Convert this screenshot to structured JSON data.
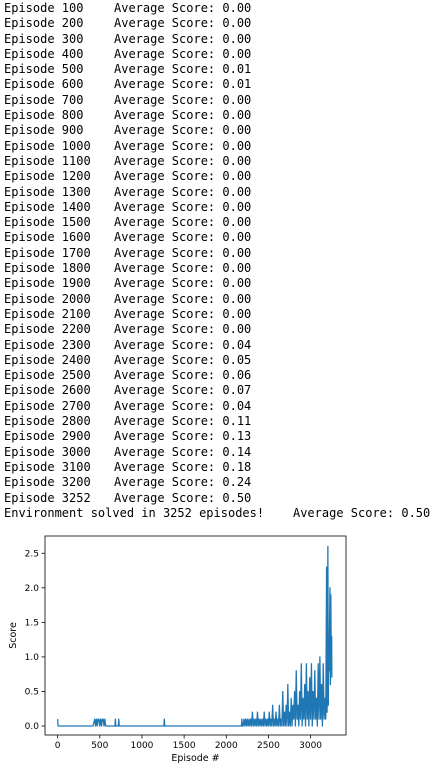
{
  "log": {
    "lines": [
      {
        "episode_label": "Episode 100",
        "score_label": "Average Score: 0.00"
      },
      {
        "episode_label": "Episode 200",
        "score_label": "Average Score: 0.00"
      },
      {
        "episode_label": "Episode 300",
        "score_label": "Average Score: 0.00"
      },
      {
        "episode_label": "Episode 400",
        "score_label": "Average Score: 0.00"
      },
      {
        "episode_label": "Episode 500",
        "score_label": "Average Score: 0.01"
      },
      {
        "episode_label": "Episode 600",
        "score_label": "Average Score: 0.01"
      },
      {
        "episode_label": "Episode 700",
        "score_label": "Average Score: 0.00"
      },
      {
        "episode_label": "Episode 800",
        "score_label": "Average Score: 0.00"
      },
      {
        "episode_label": "Episode 900",
        "score_label": "Average Score: 0.00"
      },
      {
        "episode_label": "Episode 1000",
        "score_label": "Average Score: 0.00"
      },
      {
        "episode_label": "Episode 1100",
        "score_label": "Average Score: 0.00"
      },
      {
        "episode_label": "Episode 1200",
        "score_label": "Average Score: 0.00"
      },
      {
        "episode_label": "Episode 1300",
        "score_label": "Average Score: 0.00"
      },
      {
        "episode_label": "Episode 1400",
        "score_label": "Average Score: 0.00"
      },
      {
        "episode_label": "Episode 1500",
        "score_label": "Average Score: 0.00"
      },
      {
        "episode_label": "Episode 1600",
        "score_label": "Average Score: 0.00"
      },
      {
        "episode_label": "Episode 1700",
        "score_label": "Average Score: 0.00"
      },
      {
        "episode_label": "Episode 1800",
        "score_label": "Average Score: 0.00"
      },
      {
        "episode_label": "Episode 1900",
        "score_label": "Average Score: 0.00"
      },
      {
        "episode_label": "Episode 2000",
        "score_label": "Average Score: 0.00"
      },
      {
        "episode_label": "Episode 2100",
        "score_label": "Average Score: 0.00"
      },
      {
        "episode_label": "Episode 2200",
        "score_label": "Average Score: 0.00"
      },
      {
        "episode_label": "Episode 2300",
        "score_label": "Average Score: 0.04"
      },
      {
        "episode_label": "Episode 2400",
        "score_label": "Average Score: 0.05"
      },
      {
        "episode_label": "Episode 2500",
        "score_label": "Average Score: 0.06"
      },
      {
        "episode_label": "Episode 2600",
        "score_label": "Average Score: 0.07"
      },
      {
        "episode_label": "Episode 2700",
        "score_label": "Average Score: 0.04"
      },
      {
        "episode_label": "Episode 2800",
        "score_label": "Average Score: 0.11"
      },
      {
        "episode_label": "Episode 2900",
        "score_label": "Average Score: 0.13"
      },
      {
        "episode_label": "Episode 3000",
        "score_label": "Average Score: 0.14"
      },
      {
        "episode_label": "Episode 3100",
        "score_label": "Average Score: 0.18"
      },
      {
        "episode_label": "Episode 3200",
        "score_label": "Average Score: 0.24"
      },
      {
        "episode_label": "Episode 3252",
        "score_label": "Average Score: 0.50"
      }
    ],
    "solved_line": "Environment solved in 3252 episodes!\tAverage Score: 0.50"
  },
  "chart_data": {
    "type": "line",
    "xlabel": "Episode #",
    "ylabel": "Score",
    "xlim": [
      -150,
      3420
    ],
    "ylim": [
      -0.13,
      2.75
    ],
    "xticks": [
      0,
      500,
      1000,
      1500,
      2000,
      2500,
      3000
    ],
    "yticks": [
      0.0,
      0.5,
      1.0,
      1.5,
      2.0,
      2.5
    ],
    "xtick_labels": [
      "0",
      "500",
      "1000",
      "1500",
      "2000",
      "2500",
      "3000"
    ],
    "ytick_labels": [
      "0.0",
      "0.5",
      "1.0",
      "1.5",
      "2.0",
      "2.5"
    ],
    "grid": false,
    "line_color": "#1f77b4",
    "series": [
      {
        "x": [
          0,
          5,
          12,
          20,
          40,
          80,
          150,
          250,
          350,
          420,
          440,
          450,
          460,
          470,
          480,
          490,
          500,
          510,
          520,
          530,
          540,
          550,
          560,
          570,
          580,
          600,
          650,
          680,
          685,
          690,
          700,
          720,
          725,
          730,
          740,
          800,
          900,
          1000,
          1100,
          1200,
          1260,
          1265,
          1270,
          1280,
          1400,
          1600,
          1800,
          2000,
          2150,
          2180,
          2185,
          2190,
          2200,
          2210,
          2220,
          2230,
          2240,
          2250,
          2260,
          2270,
          2280,
          2290,
          2300,
          2310,
          2320,
          2330,
          2340,
          2350,
          2360,
          2370,
          2380,
          2390,
          2400,
          2410,
          2420,
          2430,
          2440,
          2450,
          2460,
          2470,
          2480,
          2490,
          2500,
          2510,
          2520,
          2530,
          2540,
          2550,
          2560,
          2570,
          2580,
          2590,
          2600,
          2610,
          2620,
          2630,
          2640,
          2650,
          2660,
          2670,
          2680,
          2690,
          2700,
          2710,
          2720,
          2730,
          2740,
          2750,
          2760,
          2770,
          2780,
          2790,
          2800,
          2810,
          2820,
          2830,
          2840,
          2850,
          2860,
          2870,
          2880,
          2890,
          2900,
          2910,
          2920,
          2930,
          2940,
          2950,
          2960,
          2970,
          2980,
          2990,
          3000,
          3010,
          3020,
          3030,
          3040,
          3050,
          3060,
          3070,
          3080,
          3090,
          3100,
          3110,
          3120,
          3130,
          3140,
          3150,
          3160,
          3170,
          3180,
          3190,
          3195,
          3200,
          3205,
          3210,
          3215,
          3220,
          3225,
          3230,
          3235,
          3240,
          3245,
          3250,
          3252
        ],
        "y": [
          0.1,
          0.0,
          0.0,
          0.0,
          0.0,
          0.0,
          0.0,
          0.0,
          0.0,
          0.0,
          0.1,
          0.0,
          0.1,
          0.0,
          0.1,
          0.1,
          0.0,
          0.1,
          0.0,
          0.1,
          0.1,
          0.0,
          0.1,
          0.0,
          0.0,
          0.0,
          0.0,
          0.0,
          0.1,
          0.0,
          0.0,
          0.0,
          0.1,
          0.0,
          0.0,
          0.0,
          0.0,
          0.0,
          0.0,
          0.0,
          0.0,
          0.1,
          0.0,
          0.0,
          0.0,
          0.0,
          0.0,
          0.0,
          0.0,
          0.0,
          0.1,
          0.0,
          0.0,
          0.1,
          0.0,
          0.1,
          0.0,
          0.1,
          0.0,
          0.1,
          0.0,
          0.1,
          0.0,
          0.2,
          0.0,
          0.1,
          0.0,
          0.1,
          0.0,
          0.2,
          0.0,
          0.1,
          0.0,
          0.1,
          0.0,
          0.1,
          0.0,
          0.2,
          0.0,
          0.1,
          0.0,
          0.1,
          0.0,
          0.2,
          0.0,
          0.1,
          0.0,
          0.3,
          0.0,
          0.1,
          0.0,
          0.2,
          0.0,
          0.1,
          0.0,
          0.3,
          0.0,
          0.1,
          0.0,
          0.5,
          0.0,
          0.2,
          0.0,
          0.3,
          0.0,
          0.6,
          0.0,
          0.2,
          0.0,
          0.4,
          0.0,
          0.3,
          0.1,
          0.5,
          0.0,
          0.8,
          0.1,
          0.3,
          0.0,
          0.5,
          0.1,
          0.9,
          0.0,
          0.4,
          0.1,
          0.6,
          0.0,
          0.9,
          0.1,
          0.5,
          0.0,
          0.7,
          0.1,
          0.9,
          0.0,
          0.5,
          0.1,
          0.8,
          0.1,
          0.4,
          0.0,
          0.9,
          0.1,
          1.0,
          0.1,
          0.6,
          0.0,
          0.9,
          0.1,
          0.4,
          0.1,
          2.3,
          0.2,
          0.5,
          2.6,
          0.3,
          1.2,
          0.8,
          1.5,
          2.0,
          0.6,
          1.9,
          0.9,
          1.3,
          0.7
        ]
      }
    ]
  }
}
